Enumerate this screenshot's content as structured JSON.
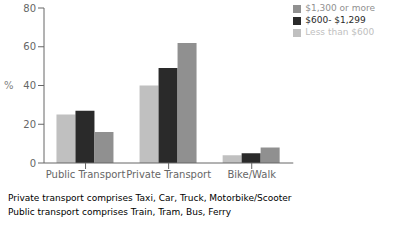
{
  "chart_data": {
    "type": "bar",
    "categories": [
      "Public Transport",
      "Private Transport",
      "Bike/Walk"
    ],
    "series": [
      {
        "name": "Less than $600",
        "color": "#c0c0c0",
        "values": [
          25,
          40,
          4
        ]
      },
      {
        "name": "$600- $1,299",
        "color": "#2a2a2a",
        "values": [
          27,
          49,
          5
        ]
      },
      {
        "name": "$1,300 or more",
        "color": "#909090",
        "values": [
          16,
          62,
          8
        ]
      }
    ],
    "ylabel": "%",
    "ylim": [
      0,
      80
    ],
    "yticks": [
      0,
      20,
      40,
      60,
      80
    ],
    "annotations": [
      "Private transport comprises Taxi, Car, Truck, Motorbike/Scooter",
      "Public transport comprises Train, Tram, Bus, Ferry"
    ],
    "legend": "upper right",
    "grid": false
  }
}
